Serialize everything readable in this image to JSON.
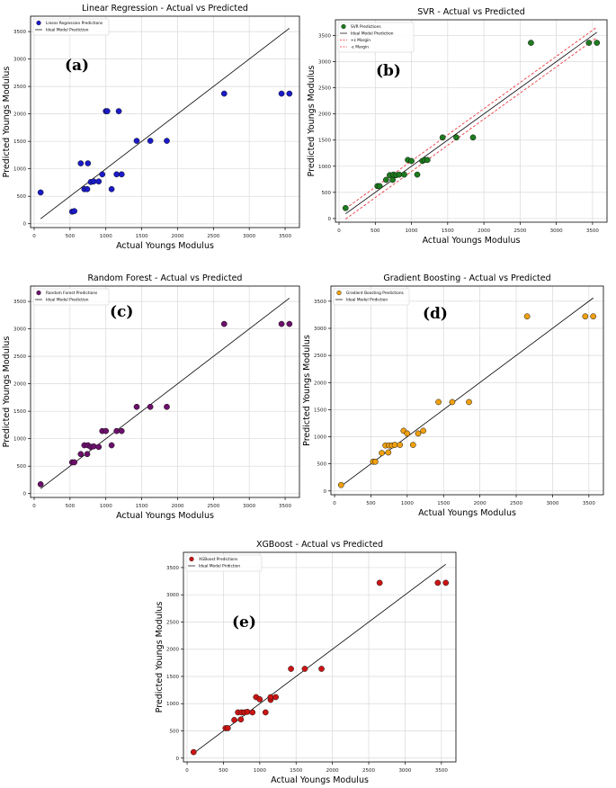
{
  "colors": {
    "ideal_line": "#000000",
    "margin_line": "#e8262c",
    "grid": "#d9d9d9",
    "frame": "#000000"
  },
  "chart_data": [
    {
      "id": "lr",
      "type": "scatter",
      "panel_letter": "(a)",
      "title": "Linear Regression - Actual vs Predicted",
      "xlabel": "Actual Youngs Modulus",
      "ylabel": "Predicted Youngs Modulus",
      "xlim": [
        -50,
        3700
      ],
      "ylim": [
        -70,
        3780
      ],
      "xticks": [
        0,
        500,
        1000,
        1500,
        2000,
        2500,
        3000,
        3500
      ],
      "yticks": [
        0,
        500,
        1000,
        1500,
        2000,
        2500,
        3000,
        3500
      ],
      "grid": true,
      "legend": "top-left",
      "series": [
        {
          "name": "Linear Regression Predictions",
          "color": "#1a1ac8",
          "x": [
            90,
            530,
            560,
            650,
            700,
            750,
            740,
            790,
            830,
            900,
            950,
            1000,
            1020,
            1080,
            1150,
            1180,
            1220,
            1430,
            1620,
            1850,
            2650,
            3450,
            3560
          ],
          "y": [
            570,
            220,
            230,
            1100,
            630,
            1100,
            630,
            760,
            770,
            770,
            900,
            2050,
            2050,
            630,
            900,
            2050,
            900,
            1510,
            1510,
            1510,
            2370,
            2370,
            2370
          ]
        },
        {
          "name": "Ideal Model Prediction",
          "kind": "line",
          "x": [
            90,
            3560
          ],
          "y": [
            90,
            3560
          ]
        }
      ]
    },
    {
      "id": "svr",
      "type": "scatter",
      "panel_letter": "(b)",
      "title": "SVR - Actual vs Predicted",
      "xlabel": "Actual Youngs Modulus",
      "ylabel": "Predicted Youngs Modulus",
      "xlim": [
        -50,
        3700
      ],
      "ylim": [
        -70,
        3800
      ],
      "xticks": [
        0,
        500,
        1000,
        1500,
        2000,
        2500,
        3000,
        3500
      ],
      "yticks": [
        0,
        500,
        1000,
        1500,
        2000,
        2500,
        3000,
        3500
      ],
      "grid": true,
      "legend": "top-left",
      "series": [
        {
          "name": "SVR Predictions",
          "color": "#1e7a1e",
          "x": [
            90,
            530,
            560,
            650,
            700,
            740,
            750,
            790,
            830,
            900,
            950,
            1000,
            1080,
            1150,
            1180,
            1220,
            1430,
            1620,
            1850,
            2650,
            3450,
            3560
          ],
          "y": [
            200,
            620,
            620,
            740,
            830,
            740,
            840,
            830,
            840,
            840,
            1120,
            1100,
            840,
            1100,
            1120,
            1120,
            1550,
            1550,
            1550,
            3360,
            3360,
            3360
          ]
        },
        {
          "name": "Ideal Model Prediction",
          "kind": "line",
          "x": [
            90,
            3560
          ],
          "y": [
            90,
            3560
          ]
        },
        {
          "name": "+ε Margin",
          "kind": "dashed",
          "x": [
            90,
            3560
          ],
          "y": [
            190,
            3660
          ]
        },
        {
          "name": "-ε Margin",
          "kind": "dashed",
          "x": [
            90,
            3560
          ],
          "y": [
            -10,
            3460
          ]
        }
      ]
    },
    {
      "id": "rf",
      "type": "scatter",
      "panel_letter": "(c)",
      "title": "Random Forest - Actual vs Predicted",
      "xlabel": "Actual Youngs Modulus",
      "ylabel": "Predicted Youngs Modulus",
      "xlim": [
        -50,
        3700
      ],
      "ylim": [
        -70,
        3780
      ],
      "xticks": [
        0,
        500,
        1000,
        1500,
        2000,
        2500,
        3000,
        3500
      ],
      "yticks": [
        0,
        500,
        1000,
        1500,
        2000,
        2500,
        3000,
        3500
      ],
      "grid": true,
      "legend": "top-left",
      "series": [
        {
          "name": "Random Forest Predictions",
          "color": "#6b106b",
          "x": [
            90,
            530,
            560,
            650,
            700,
            740,
            750,
            790,
            830,
            900,
            950,
            1000,
            1080,
            1150,
            1220,
            1430,
            1620,
            1850,
            2650,
            3450,
            3560
          ],
          "y": [
            170,
            570,
            570,
            720,
            880,
            720,
            880,
            850,
            860,
            850,
            1140,
            1140,
            880,
            1140,
            1140,
            1580,
            1580,
            1580,
            3090,
            3090,
            3090
          ]
        },
        {
          "name": "Ideal Model Prediction",
          "kind": "line",
          "x": [
            90,
            3560
          ],
          "y": [
            90,
            3560
          ]
        }
      ]
    },
    {
      "id": "gb",
      "type": "scatter",
      "panel_letter": "(d)",
      "title": "Gradient Boosting - Actual vs Predicted",
      "xlabel": "Actual Youngs Modulus",
      "ylabel": "Predicted Youngs Modulus",
      "xlim": [
        -50,
        3700
      ],
      "ylim": [
        -70,
        3780
      ],
      "xticks": [
        0,
        500,
        1000,
        1500,
        2000,
        2500,
        3000,
        3500
      ],
      "yticks": [
        0,
        500,
        1000,
        1500,
        2000,
        2500,
        3000,
        3500
      ],
      "grid": true,
      "legend": "top-left",
      "series": [
        {
          "name": "Gradient Boosting Predictions",
          "color": "#f0a010",
          "x": [
            90,
            530,
            560,
            650,
            700,
            740,
            750,
            790,
            830,
            900,
            950,
            1000,
            1080,
            1150,
            1220,
            1430,
            1620,
            1850,
            2650,
            3450,
            3560
          ],
          "y": [
            110,
            540,
            540,
            700,
            840,
            710,
            840,
            840,
            850,
            850,
            1110,
            1060,
            850,
            1060,
            1110,
            1640,
            1640,
            1640,
            3220,
            3220,
            3220
          ]
        },
        {
          "name": "Ideal Model Pridiction",
          "kind": "line",
          "x": [
            90,
            3560
          ],
          "y": [
            90,
            3560
          ]
        }
      ]
    },
    {
      "id": "xgb",
      "type": "scatter",
      "panel_letter": "(e)",
      "title": "XGBoost - Actual vs Predicted",
      "xlabel": "Actual Youngs Modulus",
      "ylabel": "Predicted Youngs Modulus",
      "xlim": [
        -50,
        3700
      ],
      "ylim": [
        -70,
        3780
      ],
      "xticks": [
        0,
        500,
        1000,
        1500,
        2000,
        2500,
        3000,
        3500
      ],
      "yticks": [
        0,
        500,
        1000,
        1500,
        2000,
        2500,
        3000,
        3500
      ],
      "grid": true,
      "legend": "top-left",
      "series": [
        {
          "name": "XGBoost Predictions",
          "color": "#cc1414",
          "x": [
            90,
            530,
            560,
            650,
            700,
            740,
            750,
            790,
            830,
            900,
            950,
            1000,
            1080,
            1150,
            1150,
            1220,
            1430,
            1620,
            1850,
            2650,
            3450,
            3560
          ],
          "y": [
            110,
            550,
            550,
            700,
            840,
            710,
            840,
            840,
            850,
            840,
            1120,
            1080,
            840,
            1070,
            1120,
            1120,
            1640,
            1640,
            1640,
            3220,
            3220,
            3220
          ]
        },
        {
          "name": "Ideal Model Pridiction",
          "kind": "line",
          "x": [
            90,
            3560
          ],
          "y": [
            90,
            3560
          ]
        }
      ]
    }
  ]
}
